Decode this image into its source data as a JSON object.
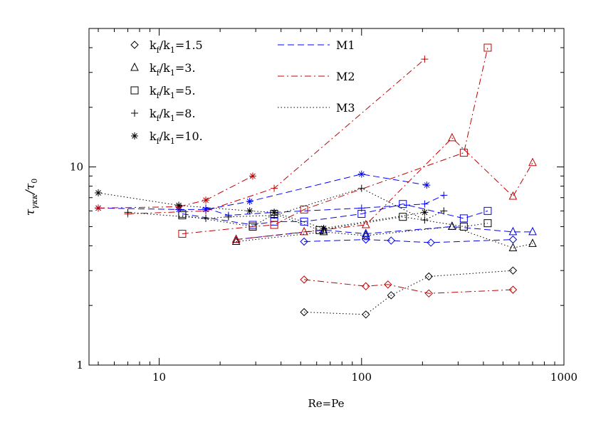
{
  "chart_data": {
    "type": "scatter",
    "title": "",
    "xlabel": "Re=Pe",
    "ylabel_parts": {
      "main": "τ",
      "sub": "γκκ",
      "div": "/τ",
      "div_sub": "0"
    },
    "xscale": "log",
    "yscale": "log",
    "xlim": [
      4.5,
      1000
    ],
    "ylim": [
      1,
      50
    ],
    "x_ticks": [
      {
        "value": 10,
        "label": "10"
      },
      {
        "value": 100,
        "label": "100"
      },
      {
        "value": 1000,
        "label": "1000"
      }
    ],
    "y_ticks": [
      {
        "value": 1,
        "label": "1"
      },
      {
        "value": 10,
        "label": "10"
      }
    ],
    "grid": false,
    "legend_placement": "top-left",
    "symbol_legend": [
      {
        "symbol": "diamond",
        "label_main": "k",
        "label_sub1": "f",
        "label_mid": "/k",
        "label_sub2": "1",
        "label_end": "=1.5"
      },
      {
        "symbol": "triangle",
        "label_main": "k",
        "label_sub1": "f",
        "label_mid": "/k",
        "label_sub2": "1",
        "label_end": "=3."
      },
      {
        "symbol": "square",
        "label_main": "k",
        "label_sub1": "f",
        "label_mid": "/k",
        "label_sub2": "1",
        "label_end": "=5."
      },
      {
        "symbol": "plus",
        "label_main": "k",
        "label_sub1": "f",
        "label_mid": "/k",
        "label_sub2": "1",
        "label_end": "=8."
      },
      {
        "symbol": "asterisk",
        "label_main": "k",
        "label_sub1": "f",
        "label_mid": "/k",
        "label_sub2": "1",
        "label_end": "=10."
      }
    ],
    "model_legend": [
      {
        "name": "M1",
        "color": "#0000ff",
        "dash": "dashed"
      },
      {
        "name": "M2",
        "color": "#c00000",
        "dash": "dashdot"
      },
      {
        "name": "M3",
        "color": "#000000",
        "dash": "dotted"
      }
    ],
    "series": [
      {
        "model": "M1",
        "symbol": "diamond",
        "color": "#0000ff",
        "dash": "dashed",
        "points": [
          [
            52,
            4.2
          ],
          [
            105,
            4.3
          ],
          [
            140,
            4.25
          ],
          [
            220,
            4.15
          ],
          [
            560,
            4.3
          ]
        ]
      },
      {
        "model": "M2",
        "symbol": "diamond",
        "color": "#c00000",
        "dash": "dashdot",
        "points": [
          [
            52,
            2.7
          ],
          [
            105,
            2.5
          ],
          [
            135,
            2.55
          ],
          [
            215,
            2.3
          ],
          [
            560,
            2.4
          ]
        ]
      },
      {
        "model": "M3",
        "symbol": "diamond",
        "color": "#000000",
        "dash": "dotted",
        "points": [
          [
            52,
            1.85
          ],
          [
            105,
            1.8
          ],
          [
            140,
            2.25
          ],
          [
            215,
            2.8
          ],
          [
            560,
            3.0
          ]
        ]
      },
      {
        "model": "M1",
        "symbol": "triangle",
        "color": "#0000ff",
        "dash": "dashed",
        "points": [
          [
            24,
            4.3
          ],
          [
            65,
            4.8
          ],
          [
            105,
            4.6
          ],
          [
            280,
            5.0
          ],
          [
            560,
            4.7
          ],
          [
            700,
            4.7
          ]
        ]
      },
      {
        "model": "M2",
        "symbol": "triangle",
        "color": "#c00000",
        "dash": "dashdot",
        "points": [
          [
            24,
            4.3
          ],
          [
            52,
            4.7
          ],
          [
            105,
            5.1
          ],
          [
            280,
            14.0
          ],
          [
            560,
            7.1
          ],
          [
            700,
            10.5
          ]
        ]
      },
      {
        "model": "M3",
        "symbol": "triangle",
        "color": "#000000",
        "dash": "dotted",
        "points": [
          [
            24,
            4.2
          ],
          [
            65,
            4.7
          ],
          [
            105,
            4.5
          ],
          [
            280,
            5.0
          ],
          [
            560,
            3.9
          ],
          [
            700,
            4.1
          ]
        ]
      },
      {
        "model": "M1",
        "symbol": "square",
        "color": "#0000ff",
        "dash": "dashed",
        "points": [
          [
            13,
            5.8
          ],
          [
            29,
            5.1
          ],
          [
            37,
            5.3
          ],
          [
            52,
            5.3
          ],
          [
            100,
            5.8
          ],
          [
            160,
            6.5
          ],
          [
            320,
            5.5
          ],
          [
            420,
            6.0
          ]
        ]
      },
      {
        "model": "M2",
        "symbol": "square",
        "color": "#c00000",
        "dash": "dashdot",
        "points": [
          [
            13,
            4.6
          ],
          [
            29,
            5.0
          ],
          [
            37,
            5.1
          ],
          [
            52,
            6.1
          ],
          [
            320,
            11.8
          ],
          [
            420,
            40.0
          ]
        ]
      },
      {
        "model": "M3",
        "symbol": "square",
        "color": "#000000",
        "dash": "dotted",
        "points": [
          [
            13,
            5.7
          ],
          [
            29,
            5.0
          ],
          [
            37,
            5.8
          ],
          [
            62,
            4.8
          ],
          [
            160,
            5.6
          ],
          [
            320,
            5.0
          ],
          [
            420,
            5.2
          ]
        ]
      },
      {
        "model": "M1",
        "symbol": "plus",
        "color": "#0000ff",
        "dash": "dashed",
        "points": [
          [
            17,
            6.2
          ],
          [
            22,
            5.7
          ],
          [
            37,
            5.9
          ],
          [
            100,
            6.2
          ],
          [
            205,
            6.5
          ],
          [
            255,
            7.2
          ]
        ]
      },
      {
        "model": "M2",
        "symbol": "plus",
        "color": "#c00000",
        "dash": "dashdot",
        "points": [
          [
            7,
            5.8
          ],
          [
            17,
            6.0
          ],
          [
            37,
            7.8
          ],
          [
            205,
            35.0
          ]
        ]
      },
      {
        "model": "M3",
        "symbol": "plus",
        "color": "#000000",
        "dash": "dotted",
        "points": [
          [
            7,
            5.9
          ],
          [
            17,
            5.5
          ],
          [
            22,
            5.6
          ],
          [
            37,
            5.7
          ],
          [
            100,
            7.8
          ],
          [
            205,
            5.4
          ],
          [
            255,
            6.0
          ]
        ]
      },
      {
        "model": "M1",
        "symbol": "asterisk",
        "color": "#0000ff",
        "dash": "dashed",
        "points": [
          [
            5,
            6.2
          ],
          [
            12.5,
            6.1
          ],
          [
            17,
            6.1
          ],
          [
            28,
            6.7
          ],
          [
            100,
            9.2
          ],
          [
            210,
            8.1
          ]
        ]
      },
      {
        "model": "M2",
        "symbol": "asterisk",
        "color": "#c00000",
        "dash": "dashdot",
        "points": [
          [
            5,
            6.2
          ],
          [
            12.5,
            6.3
          ],
          [
            17,
            6.8
          ],
          [
            29,
            9.0
          ]
        ]
      },
      {
        "model": "M3",
        "symbol": "asterisk",
        "color": "#000000",
        "dash": "dotted",
        "points": [
          [
            5,
            7.4
          ],
          [
            12.5,
            6.4
          ],
          [
            28,
            6.0
          ],
          [
            37,
            5.9
          ],
          [
            65,
            4.9
          ],
          [
            205,
            5.9
          ]
        ]
      }
    ]
  }
}
